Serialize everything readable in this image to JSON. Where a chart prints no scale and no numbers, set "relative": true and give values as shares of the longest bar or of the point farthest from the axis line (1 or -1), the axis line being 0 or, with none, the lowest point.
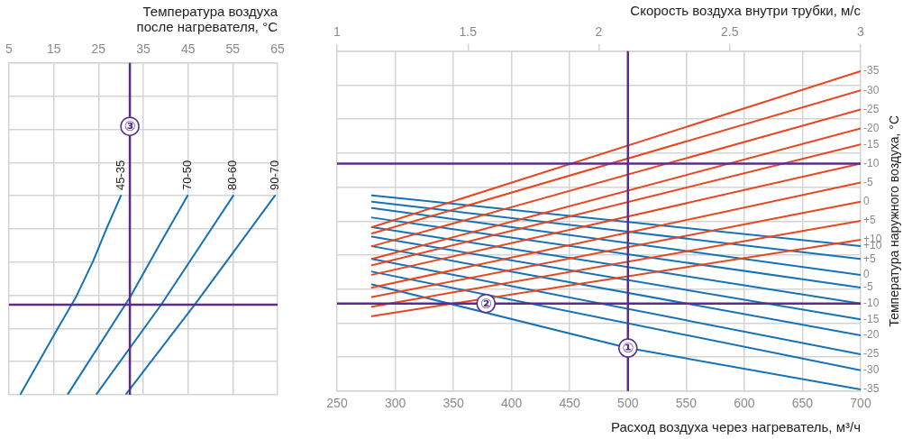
{
  "chart_data": [
    {
      "type": "line",
      "xlabel": "Температура воздуха после нагревателя, °C",
      "xlim": [
        5,
        65
      ],
      "xticks": [
        5,
        15,
        25,
        35,
        45,
        55,
        65
      ],
      "relative": true,
      "grid": true,
      "series": [
        {
          "name": "45-35",
          "color": "#1672b6",
          "x": [
            7.6,
            15.9,
            20.0,
            23.8,
            26.9,
            30.0
          ],
          "values": [
            0,
            0.33,
            0.49,
            0.67,
            0.84,
            1
          ]
        },
        {
          "name": "70-50",
          "color": "#1672b6",
          "x": [
            18.2,
            32.1,
            38.3,
            44.9
          ],
          "values": [
            0,
            0.49,
            0.74,
            1
          ]
        },
        {
          "name": "80-60",
          "color": "#1672b6",
          "x": [
            24.6,
            39.0,
            55.1
          ],
          "values": [
            0,
            0.45,
            1
          ]
        },
        {
          "name": "90-70",
          "color": "#1672b6",
          "x": [
            31.2,
            46.5,
            64.4
          ],
          "values": [
            0,
            0.45,
            1
          ]
        }
      ],
      "ref_lines": [
        {
          "axis": "x",
          "value": 32,
          "color": "#5b2c8f"
        },
        {
          "axis": "y",
          "value": 0.45,
          "color": "#5b2c8f"
        }
      ],
      "annotations": [
        {
          "text": "③",
          "x": 32,
          "y": 1.35
        }
      ]
    },
    {
      "type": "line",
      "xlabel": "Расход воздуха через нагреватель, м³/ч",
      "x2label": "Скорость воздуха внутри трубки, м/с",
      "y2label": "Температура наружного воздуха, °C",
      "xlim": [
        250,
        700
      ],
      "xticks": [
        250,
        300,
        350,
        400,
        450,
        500,
        550,
        600,
        650,
        700
      ],
      "x2lim": [
        1,
        3
      ],
      "x2ticks": [
        1,
        1.5,
        2,
        2.5,
        3
      ],
      "relative": true,
      "grid": true,
      "series": [
        {
          "name": "-35",
          "color": "#e8461e",
          "x": [
            280,
            700
          ],
          "values": [
            0.51,
            1
          ]
        },
        {
          "name": "-30",
          "color": "#e8461e",
          "x": [
            280,
            700
          ],
          "values": [
            0.49,
            0.94
          ]
        },
        {
          "name": "-25",
          "color": "#e8461e",
          "x": [
            280,
            700
          ],
          "values": [
            0.45,
            0.88
          ]
        },
        {
          "name": "-20",
          "color": "#e8461e",
          "x": [
            280,
            700
          ],
          "values": [
            0.41,
            0.82
          ]
        },
        {
          "name": "-15",
          "color": "#e8461e",
          "x": [
            280,
            700
          ],
          "values": [
            0.39,
            0.77
          ]
        },
        {
          "name": "-10",
          "color": "#e8461e",
          "x": [
            280,
            700
          ],
          "values": [
            0.36,
            0.71
          ]
        },
        {
          "name": "-5",
          "color": "#e8461e",
          "x": [
            280,
            700
          ],
          "values": [
            0.32,
            0.65
          ]
        },
        {
          "name": "0",
          "color": "#e8461e",
          "x": [
            280,
            700
          ],
          "values": [
            0.29,
            0.59
          ]
        },
        {
          "name": "+5",
          "color": "#e8461e",
          "x": [
            280,
            700
          ],
          "values": [
            0.26,
            0.53
          ]
        },
        {
          "name": "+10",
          "color": "#e8461e",
          "x": [
            280,
            700
          ],
          "values": [
            0.23,
            0.47
          ]
        },
        {
          "name": "+10",
          "color": "#1672b6",
          "x": [
            280,
            700
          ],
          "values": [
            0.61,
            0.45
          ]
        },
        {
          "name": "+5",
          "color": "#1672b6",
          "x": [
            280,
            700
          ],
          "values": [
            0.59,
            0.41
          ]
        },
        {
          "name": "0",
          "color": "#1672b6",
          "x": [
            280,
            700
          ],
          "values": [
            0.57,
            0.36
          ]
        },
        {
          "name": "-5",
          "color": "#1672b6",
          "x": [
            280,
            700
          ],
          "values": [
            0.54,
            0.32
          ]
        },
        {
          "name": "-10",
          "color": "#1672b6",
          "x": [
            280,
            700
          ],
          "values": [
            0.51,
            0.27
          ]
        },
        {
          "name": "-15",
          "color": "#1672b6",
          "x": [
            280,
            700
          ],
          "values": [
            0.48,
            0.22
          ]
        },
        {
          "name": "-20",
          "color": "#1672b6",
          "x": [
            280,
            700
          ],
          "values": [
            0.45,
            0.17
          ]
        },
        {
          "name": "-25",
          "color": "#1672b6",
          "x": [
            280,
            700
          ],
          "values": [
            0.41,
            0.11
          ]
        },
        {
          "name": "-30",
          "color": "#1672b6",
          "x": [
            280,
            700
          ],
          "values": [
            0.37,
            0.06
          ]
        },
        {
          "name": "-35",
          "color": "#1672b6",
          "x": [
            280,
            500,
            700
          ],
          "values": [
            0.33,
            0.13,
            0
          ]
        }
      ],
      "ref_lines": [
        {
          "axis": "x",
          "value": 500,
          "color": "#5b2c8f"
        },
        {
          "axis": "y",
          "value": 0.27,
          "color": "#5b2c8f"
        },
        {
          "axis": "y",
          "value": 0.71,
          "color": "#5b2c8f"
        }
      ],
      "annotations": [
        {
          "text": "①",
          "x": 500,
          "y": 0.13
        },
        {
          "text": "②",
          "x": 378,
          "y": 0.27
        }
      ]
    }
  ]
}
